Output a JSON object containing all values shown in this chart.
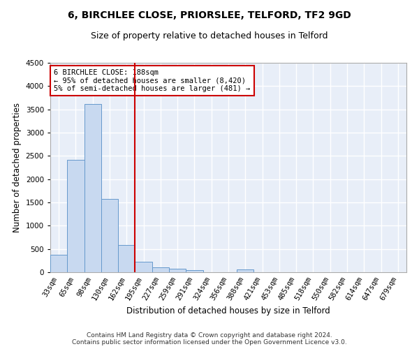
{
  "title1": "6, BIRCHLEE CLOSE, PRIORSLEE, TELFORD, TF2 9GD",
  "title2": "Size of property relative to detached houses in Telford",
  "xlabel": "Distribution of detached houses by size in Telford",
  "ylabel": "Number of detached properties",
  "categories": [
    "33sqm",
    "65sqm",
    "98sqm",
    "130sqm",
    "162sqm",
    "195sqm",
    "227sqm",
    "259sqm",
    "291sqm",
    "324sqm",
    "356sqm",
    "388sqm",
    "421sqm",
    "453sqm",
    "485sqm",
    "518sqm",
    "550sqm",
    "582sqm",
    "614sqm",
    "647sqm",
    "679sqm"
  ],
  "values": [
    370,
    2420,
    3620,
    1580,
    590,
    230,
    105,
    70,
    45,
    0,
    0,
    55,
    0,
    0,
    0,
    0,
    0,
    0,
    0,
    0,
    0
  ],
  "bar_color": "#c8d9f0",
  "bar_edge_color": "#6699cc",
  "vline_x": 4.5,
  "vline_color": "#cc0000",
  "annotation_text": "6 BIRCHLEE CLOSE: 188sqm\n← 95% of detached houses are smaller (8,420)\n5% of semi-detached houses are larger (481) →",
  "annotation_box_color": "#cc0000",
  "ylim": [
    0,
    4500
  ],
  "yticks": [
    0,
    500,
    1000,
    1500,
    2000,
    2500,
    3000,
    3500,
    4000,
    4500
  ],
  "background_color": "#e8eef8",
  "grid_color": "#ffffff",
  "footnote": "Contains HM Land Registry data © Crown copyright and database right 2024.\nContains public sector information licensed under the Open Government Licence v3.0.",
  "title1_fontsize": 10,
  "title2_fontsize": 9,
  "xlabel_fontsize": 8.5,
  "ylabel_fontsize": 8.5,
  "tick_fontsize": 7.5,
  "annotation_fontsize": 7.5,
  "footnote_fontsize": 6.5
}
